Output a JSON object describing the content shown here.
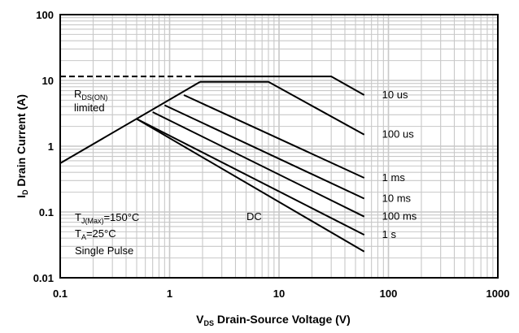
{
  "chart_data": {
    "type": "line",
    "x_scale": "log",
    "y_scale": "log",
    "xlim": [
      0.1,
      1000
    ],
    "ylim": [
      0.01,
      100
    ],
    "grid": true,
    "xlabel": "V",
    "xlabel_sub": "DS",
    "xlabel_rest": " Drain-Source Voltage (V)",
    "ylabel": "I",
    "ylabel_sub": "D",
    "ylabel_rest": " Drain Current (A)",
    "x_ticks": [
      {
        "value": 0.1,
        "label": "0.1"
      },
      {
        "value": 1,
        "label": "1"
      },
      {
        "value": 10,
        "label": "10"
      },
      {
        "value": 100,
        "label": "100"
      },
      {
        "value": 1000,
        "label": "1000"
      }
    ],
    "y_ticks": [
      {
        "value": 100,
        "label": "100"
      },
      {
        "value": 10,
        "label": "10"
      },
      {
        "value": 1,
        "label": "1"
      },
      {
        "value": 0.1,
        "label": "0.1"
      },
      {
        "value": 0.01,
        "label": "0.01"
      }
    ],
    "limit_lines": [
      {
        "name": "rdson-limit",
        "points": [
          [
            0.1,
            0.55
          ],
          [
            1.9,
            9.5
          ]
        ]
      },
      {
        "name": "current-limit",
        "dashed": true,
        "points": [
          [
            0.1,
            11.5
          ],
          [
            1.9,
            11.5
          ]
        ]
      }
    ],
    "series": [
      {
        "name": "10 us",
        "points": [
          [
            1.9,
            11.5
          ],
          [
            30,
            11.5
          ],
          [
            60,
            6.0
          ]
        ]
      },
      {
        "name": "100 us",
        "points": [
          [
            1.9,
            9.5
          ],
          [
            8,
            9.5
          ],
          [
            60,
            1.5
          ]
        ]
      },
      {
        "name": "1 ms",
        "points": [
          [
            1.35,
            6.0
          ],
          [
            60,
            0.33
          ]
        ]
      },
      {
        "name": "10 ms",
        "points": [
          [
            0.9,
            4.2
          ],
          [
            60,
            0.16
          ]
        ]
      },
      {
        "name": "100 ms",
        "points": [
          [
            0.7,
            3.3
          ],
          [
            60,
            0.085
          ]
        ]
      },
      {
        "name": "1 s",
        "points": [
          [
            0.5,
            2.6
          ],
          [
            60,
            0.045
          ]
        ]
      },
      {
        "name": "DC",
        "points": [
          [
            0.5,
            2.6
          ],
          [
            60,
            0.025
          ]
        ]
      }
    ],
    "annotations": {
      "rdson": [
        "R",
        "DS(ON)",
        "limited"
      ],
      "dc": "DC",
      "conditions": [
        {
          "main": "T",
          "sub": "J(Max)",
          "rest": "=150°C"
        },
        {
          "main": "T",
          "sub": "A",
          "rest": "=25°C"
        },
        {
          "main": "Single Pulse",
          "sub": "",
          "rest": ""
        }
      ]
    },
    "colors": {
      "grid": "#c8c8c8",
      "line": "#000000",
      "background": "#ffffff"
    }
  }
}
